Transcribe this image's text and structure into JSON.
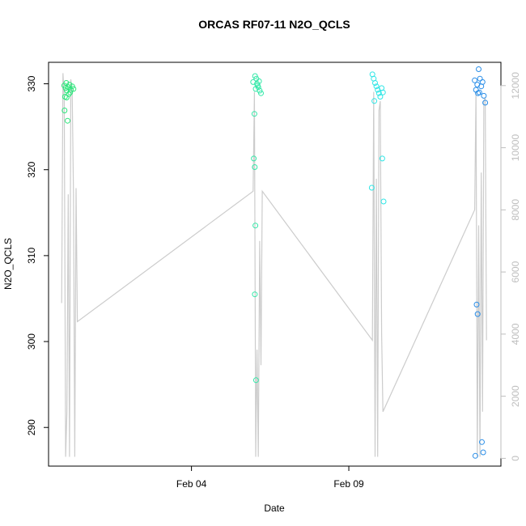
{
  "chart_data": {
    "type": "scatter",
    "title": "ORCAS RF07-11 N2O_QCLS",
    "xlabel": "Date",
    "ylabel": "N2O_QCLS",
    "x_range": [
      "Jan 30 11:00",
      "Feb 13 20:00"
    ],
    "ylim": [
      285.5,
      332.5
    ],
    "y2lim": [
      -250,
      12750
    ],
    "x_ticks": [
      "Feb 04",
      "Feb 09"
    ],
    "y_ticks": [
      290,
      300,
      310,
      320,
      330
    ],
    "y2_ticks": [
      0,
      2000,
      4000,
      6000,
      8000,
      10000,
      12000
    ],
    "right_axis_color": "#bebebe",
    "altitude_line_color": "#cccccc",
    "grid": false,
    "legend": "none",
    "series": [
      {
        "values": [
          {
            "x": "Jan 30 23:00",
            "y": 329.8,
            "color": "#2ee67c"
          },
          {
            "x": "Jan 31 00:00",
            "y": 329.5,
            "color": "#2ee67c"
          },
          {
            "x": "Jan 31 00:30",
            "y": 330.1,
            "color": "#2ee67c"
          },
          {
            "x": "Jan 31 01:00",
            "y": 329.2,
            "color": "#2ee67c"
          },
          {
            "x": "Jan 31 02:00",
            "y": 329.6,
            "color": "#2ee67c"
          },
          {
            "x": "Jan 31 03:00",
            "y": 329.9,
            "color": "#2ee67c"
          },
          {
            "x": "Jan 31 04:00",
            "y": 329.3,
            "color": "#2ee67c"
          },
          {
            "x": "Jan 31 05:00",
            "y": 329.7,
            "color": "#2ee67c"
          },
          {
            "x": "Jan 31 06:00",
            "y": 329.4,
            "color": "#2ee67c"
          },
          {
            "x": "Jan 30 23:30",
            "y": 328.5,
            "color": "#2ee67c"
          },
          {
            "x": "Jan 31 00:45",
            "y": 328.4,
            "color": "#2ee67c"
          },
          {
            "x": "Jan 31 02:30",
            "y": 328.8,
            "color": "#2ee67c"
          },
          {
            "x": "Jan 31 03:30",
            "y": 329.0,
            "color": "#2ee67c"
          },
          {
            "x": "Jan 30 23:15",
            "y": 326.9,
            "color": "#2ee67c"
          },
          {
            "x": "Jan 31 01:30",
            "y": 325.7,
            "color": "#2ee67c"
          },
          {
            "x": "Feb 05 23:00",
            "y": 330.2,
            "color": "#34e8a8"
          },
          {
            "x": "Feb 06 00:30",
            "y": 330.9,
            "color": "#34e8a8"
          },
          {
            "x": "Feb 06 01:30",
            "y": 330.6,
            "color": "#34e8a8"
          },
          {
            "x": "Feb 06 02:00",
            "y": 330.0,
            "color": "#34e8a8"
          },
          {
            "x": "Feb 06 03:00",
            "y": 329.6,
            "color": "#34e8a8"
          },
          {
            "x": "Feb 06 04:00",
            "y": 329.2,
            "color": "#34e8a8"
          },
          {
            "x": "Feb 06 05:00",
            "y": 328.9,
            "color": "#34e8a8"
          },
          {
            "x": "Feb 06 01:00",
            "y": 329.4,
            "color": "#34e8a8"
          },
          {
            "x": "Feb 06 02:30",
            "y": 329.8,
            "color": "#34e8a8"
          },
          {
            "x": "Feb 06 03:30",
            "y": 330.3,
            "color": "#34e8a8"
          },
          {
            "x": "Feb 06 00:00",
            "y": 326.5,
            "color": "#34e8a8"
          },
          {
            "x": "Feb 05 23:30",
            "y": 321.3,
            "color": "#34e8a8"
          },
          {
            "x": "Feb 06 00:15",
            "y": 320.3,
            "color": "#34e8a8"
          },
          {
            "x": "Feb 06 00:45",
            "y": 313.5,
            "color": "#34e8a8"
          },
          {
            "x": "Feb 06 00:20",
            "y": 305.5,
            "color": "#34e8a8"
          },
          {
            "x": "Feb 06 01:15",
            "y": 295.5,
            "color": "#34e8a8"
          },
          {
            "x": "Feb 09 18:00",
            "y": 331.1,
            "color": "#2ee6e6"
          },
          {
            "x": "Feb 09 19:00",
            "y": 330.6,
            "color": "#2ee6e6"
          },
          {
            "x": "Feb 09 20:00",
            "y": 330.1,
            "color": "#2ee6e6"
          },
          {
            "x": "Feb 09 21:00",
            "y": 329.7,
            "color": "#2ee6e6"
          },
          {
            "x": "Feb 09 22:00",
            "y": 329.3,
            "color": "#2ee6e6"
          },
          {
            "x": "Feb 09 23:00",
            "y": 328.9,
            "color": "#2ee6e6"
          },
          {
            "x": "Feb 10 00:00",
            "y": 328.5,
            "color": "#2ee6e6"
          },
          {
            "x": "Feb 10 01:00",
            "y": 329.5,
            "color": "#2ee6e6"
          },
          {
            "x": "Feb 10 02:00",
            "y": 329.0,
            "color": "#2ee6e6"
          },
          {
            "x": "Feb 09 19:30",
            "y": 328.0,
            "color": "#2ee6e6"
          },
          {
            "x": "Feb 09 17:30",
            "y": 317.9,
            "color": "#2ee6e6"
          },
          {
            "x": "Feb 10 01:30",
            "y": 321.3,
            "color": "#2ee6e6"
          },
          {
            "x": "Feb 10 02:30",
            "y": 316.3,
            "color": "#2ee6e6"
          },
          {
            "x": "Feb 13 00:00",
            "y": 330.4,
            "color": "#2a8ee8"
          },
          {
            "x": "Feb 13 03:00",
            "y": 331.7,
            "color": "#2a8ee8"
          },
          {
            "x": "Feb 13 04:00",
            "y": 330.6,
            "color": "#2a8ee8"
          },
          {
            "x": "Feb 13 02:00",
            "y": 329.9,
            "color": "#2a8ee8"
          },
          {
            "x": "Feb 13 05:00",
            "y": 329.7,
            "color": "#2a8ee8"
          },
          {
            "x": "Feb 13 06:00",
            "y": 330.2,
            "color": "#2a8ee8"
          },
          {
            "x": "Feb 13 01:00",
            "y": 329.3,
            "color": "#2a8ee8"
          },
          {
            "x": "Feb 13 03:30",
            "y": 329.0,
            "color": "#2a8ee8"
          },
          {
            "x": "Feb 13 07:00",
            "y": 328.6,
            "color": "#2a8ee8"
          },
          {
            "x": "Feb 13 02:30",
            "y": 328.9,
            "color": "#2a8ee8"
          },
          {
            "x": "Feb 13 08:00",
            "y": 327.8,
            "color": "#2a8ee8"
          },
          {
            "x": "Feb 13 01:30",
            "y": 304.3,
            "color": "#2a8ee8"
          },
          {
            "x": "Feb 13 02:15",
            "y": 303.2,
            "color": "#2a8ee8"
          },
          {
            "x": "Feb 13 00:30",
            "y": 286.7,
            "color": "#2a8ee8"
          },
          {
            "x": "Feb 13 05:30",
            "y": 288.3,
            "color": "#2a8ee8"
          },
          {
            "x": "Feb 13 06:30",
            "y": 287.1,
            "color": "#2a8ee8"
          }
        ]
      }
    ],
    "altitude_path": [
      {
        "x": "Jan 30 21:00",
        "y2": 5000
      },
      {
        "x": "Jan 30 22:00",
        "y2": 12400
      },
      {
        "x": "Jan 30 23:00",
        "y2": 11600
      },
      {
        "x": "Jan 31 00:00",
        "y2": 50
      },
      {
        "x": "Jan 31 01:00",
        "y2": 1500
      },
      {
        "x": "Jan 31 02:00",
        "y2": 8500
      },
      {
        "x": "Jan 31 03:00",
        "y2": 50
      },
      {
        "x": "Jan 31 04:00",
        "y2": 12200
      },
      {
        "x": "Jan 31 05:00",
        "y2": 11800
      },
      {
        "x": "Jan 31 06:00",
        "y2": 8500
      },
      {
        "x": "Jan 31 07:00",
        "y2": 50
      },
      {
        "x": "Jan 31 08:00",
        "y2": 8700
      },
      {
        "x": "Jan 31 09:00",
        "y2": 4400
      },
      {
        "x": "Feb 05 23:00",
        "y2": 8600
      },
      {
        "x": "Feb 06 00:00",
        "y2": 11800
      },
      {
        "x": "Feb 06 01:00",
        "y2": 50
      },
      {
        "x": "Feb 06 02:00",
        "y2": 3500
      },
      {
        "x": "Feb 06 03:00",
        "y2": 50
      },
      {
        "x": "Feb 06 04:00",
        "y2": 7000
      },
      {
        "x": "Feb 06 05:00",
        "y2": 3000
      },
      {
        "x": "Feb 06 06:00",
        "y2": 8600
      },
      {
        "x": "Feb 09 18:00",
        "y2": 3800
      },
      {
        "x": "Feb 09 19:00",
        "y2": 11800
      },
      {
        "x": "Feb 09 20:00",
        "y2": 50
      },
      {
        "x": "Feb 09 21:00",
        "y2": 9000
      },
      {
        "x": "Feb 09 22:00",
        "y2": 50
      },
      {
        "x": "Feb 09 23:00",
        "y2": 11200
      },
      {
        "x": "Feb 10 00:00",
        "y2": 11500
      },
      {
        "x": "Feb 10 01:00",
        "y2": 4000
      },
      {
        "x": "Feb 10 02:00",
        "y2": 1500
      },
      {
        "x": "Feb 13 00:00",
        "y2": 8000
      },
      {
        "x": "Feb 13 01:00",
        "y2": 11800
      },
      {
        "x": "Feb 13 02:00",
        "y2": 50
      },
      {
        "x": "Feb 13 03:00",
        "y2": 7500
      },
      {
        "x": "Feb 13 04:00",
        "y2": 50
      },
      {
        "x": "Feb 13 05:00",
        "y2": 9200
      },
      {
        "x": "Feb 13 06:00",
        "y2": 1500
      },
      {
        "x": "Feb 13 07:00",
        "y2": 11500
      },
      {
        "x": "Feb 13 08:00",
        "y2": 11600
      },
      {
        "x": "Feb 13 09:00",
        "y2": 3800
      }
    ]
  }
}
